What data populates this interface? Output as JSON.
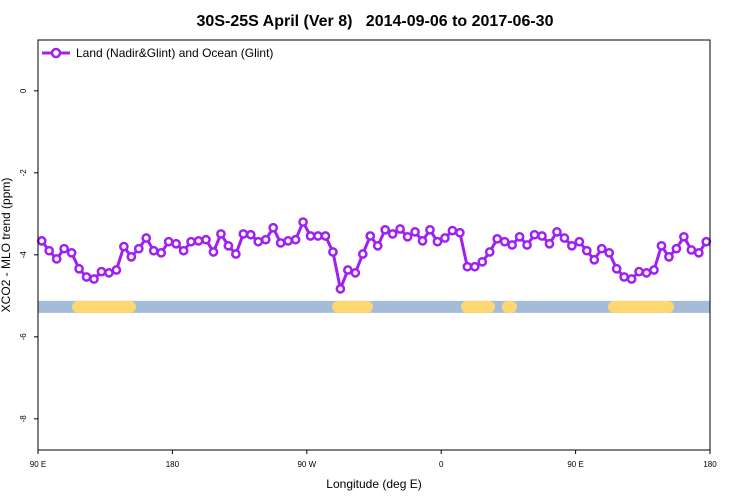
{
  "chart_data": {
    "type": "line",
    "title": "30S-25S April (Ver 8)   2014-09-06 to 2017-06-30",
    "xlabel": "Longitude (deg E)",
    "ylabel": "XCO2 - MLO trend (ppm)",
    "xlim": [
      90,
      540
    ],
    "ylim": [
      -8.76,
      1.24
    ],
    "x_ticks": [
      {
        "value": 90,
        "label": "90 E"
      },
      {
        "value": 180,
        "label": "180"
      },
      {
        "value": 270,
        "label": "90 W"
      },
      {
        "value": 360,
        "label": "0"
      },
      {
        "value": 450,
        "label": "90 E"
      },
      {
        "value": 540,
        "label": "180"
      }
    ],
    "y_ticks": [
      {
        "value": 0,
        "label": "0"
      },
      {
        "value": -2,
        "label": "-2"
      },
      {
        "value": -4,
        "label": "-4"
      },
      {
        "value": -6,
        "label": "-6"
      },
      {
        "value": -8,
        "label": "-8"
      }
    ],
    "legend": {
      "position": "top-left",
      "entries": [
        "Land (Nadir&Glint) and Ocean (Glint)"
      ]
    },
    "colors": {
      "series": "#a020f0",
      "ocean_band": "#a5bcd9",
      "land_band": "#fdd870"
    },
    "series": [
      {
        "name": "Land (Nadir&Glint) and Ocean (Glint)",
        "x_start": 92.5,
        "x_step": 5,
        "values": [
          -3.66,
          -3.9,
          -4.1,
          -3.85,
          -3.95,
          -4.34,
          -4.54,
          -4.59,
          -4.41,
          -4.44,
          -4.37,
          -3.8,
          -4.05,
          -3.85,
          -3.59,
          -3.9,
          -3.95,
          -3.68,
          -3.73,
          -3.9,
          -3.68,
          -3.66,
          -3.63,
          -3.93,
          -3.49,
          -3.78,
          -3.98,
          -3.49,
          -3.51,
          -3.68,
          -3.63,
          -3.34,
          -3.71,
          -3.66,
          -3.63,
          -3.2,
          -3.54,
          -3.54,
          -3.54,
          -3.93,
          -4.83,
          -4.37,
          -4.44,
          -3.98,
          -3.54,
          -3.78,
          -3.39,
          -3.49,
          -3.37,
          -3.56,
          -3.44,
          -3.66,
          -3.39,
          -3.68,
          -3.59,
          -3.41,
          -3.46,
          -4.29,
          -4.29,
          -4.17,
          -3.93,
          -3.61,
          -3.68,
          -3.76,
          -3.56,
          -3.76,
          -3.51,
          -3.54,
          -3.73,
          -3.44,
          -3.59,
          -3.78,
          -3.68,
          -3.9,
          -4.12,
          -3.85,
          -3.95,
          -4.34,
          -4.54,
          -4.59,
          -4.41,
          -4.44,
          -4.37,
          -3.78,
          -4.05,
          -3.85,
          -3.56,
          -3.88,
          -3.95,
          -3.68
        ]
      }
    ],
    "surface_band": {
      "y_value": -5.27,
      "land_segments": [
        [
          114.8,
          153.6
        ],
        [
          288.9,
          312.3
        ],
        [
          375.3,
          394.0
        ],
        [
          404.7,
          406.7
        ],
        [
          473.7,
          513.9
        ]
      ]
    }
  }
}
